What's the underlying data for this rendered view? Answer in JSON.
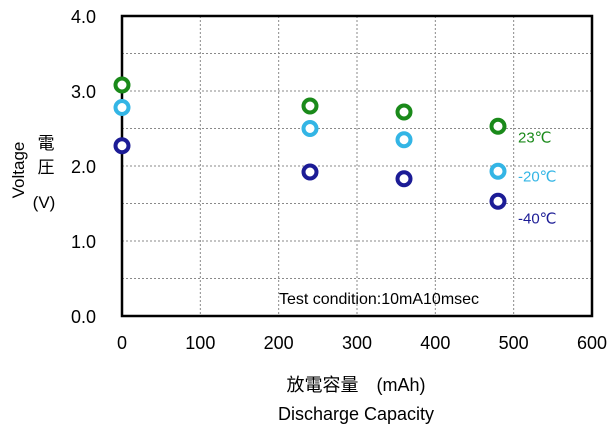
{
  "chart_data": {
    "type": "scatter",
    "x": [
      0,
      240,
      360,
      480
    ],
    "series": [
      {
        "name": "23℃",
        "color": "#1a8a1a",
        "values": [
          3.08,
          2.8,
          2.72,
          2.53
        ]
      },
      {
        "name": "-20℃",
        "color": "#33b5e5",
        "values": [
          2.78,
          2.5,
          2.35,
          1.93
        ]
      },
      {
        "name": "-40℃",
        "color": "#1c1c96",
        "values": [
          2.27,
          1.92,
          1.83,
          1.53
        ]
      }
    ],
    "xlim": [
      0,
      600
    ],
    "ylim": [
      0.0,
      4.0
    ],
    "x_ticks": [
      "0",
      "100",
      "200",
      "300",
      "400",
      "500",
      "600"
    ],
    "y_ticks": [
      "0.0",
      "1.0",
      "2.0",
      "3.0",
      "4.0"
    ],
    "ylabel_latin": "Voltage",
    "ylabel_kanji_1": "電",
    "ylabel_kanji_2": "圧",
    "ylabel_unit": "(V)",
    "xlabel_jp": "放電容量　(mAh)",
    "xlabel_en": "Discharge Capacity",
    "annotation": "Test condition:10mA10msec",
    "grid": true,
    "legend_position": "right, beside last points"
  }
}
